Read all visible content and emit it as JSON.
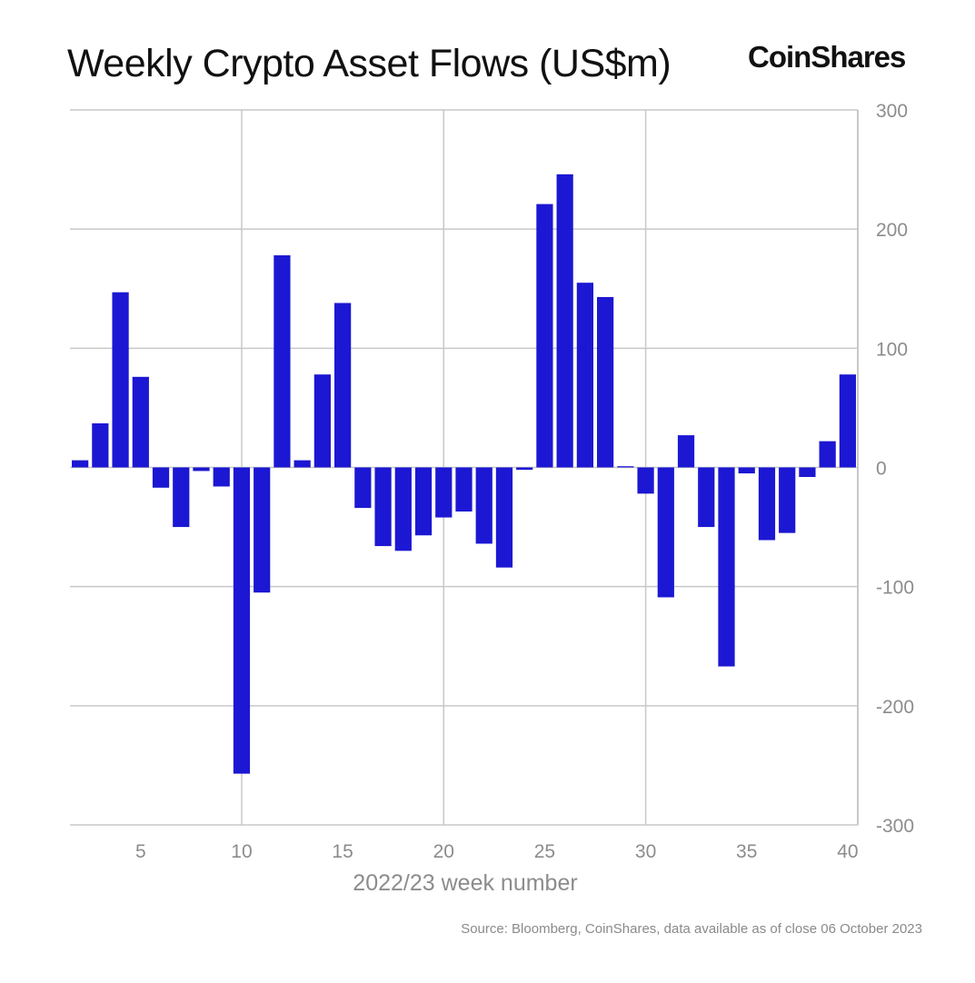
{
  "header": {
    "title": "Weekly Crypto Asset Flows (US$m)",
    "brand": "CoinShares"
  },
  "footer": {
    "source": "Source: Bloomberg, CoinShares, data available as of close 06 October 2023"
  },
  "colors": {
    "bar": "#1c17d2",
    "grid": "#c8c8c8",
    "tick_text": "#8c8c8c"
  },
  "chart_data": {
    "type": "bar",
    "xlabel": "2022/23 week number",
    "ylabel": "",
    "ylim": [
      -300,
      300
    ],
    "xlim": [
      1.5,
      40.5
    ],
    "y_axis_side": "right",
    "grid": true,
    "x_ticks": [
      5,
      10,
      15,
      20,
      25,
      30,
      35,
      40
    ],
    "y_ticks": [
      300,
      200,
      100,
      0,
      -100,
      -200,
      -300
    ],
    "x": [
      2,
      3,
      4,
      5,
      6,
      7,
      8,
      9,
      10,
      11,
      12,
      13,
      14,
      15,
      16,
      17,
      18,
      19,
      20,
      21,
      22,
      23,
      24,
      25,
      26,
      27,
      28,
      29,
      30,
      31,
      32,
      33,
      34,
      35,
      36,
      37,
      38,
      39,
      40
    ],
    "values": [
      6,
      37,
      147,
      76,
      -17,
      -50,
      -3,
      -16,
      -257,
      -105,
      178,
      6,
      78,
      138,
      -34,
      -66,
      -70,
      -57,
      -42,
      -37,
      -64,
      -84,
      -2,
      221,
      246,
      155,
      143,
      1,
      -22,
      -109,
      27,
      -50,
      -167,
      -5,
      -61,
      -55,
      -8,
      22,
      78
    ]
  }
}
